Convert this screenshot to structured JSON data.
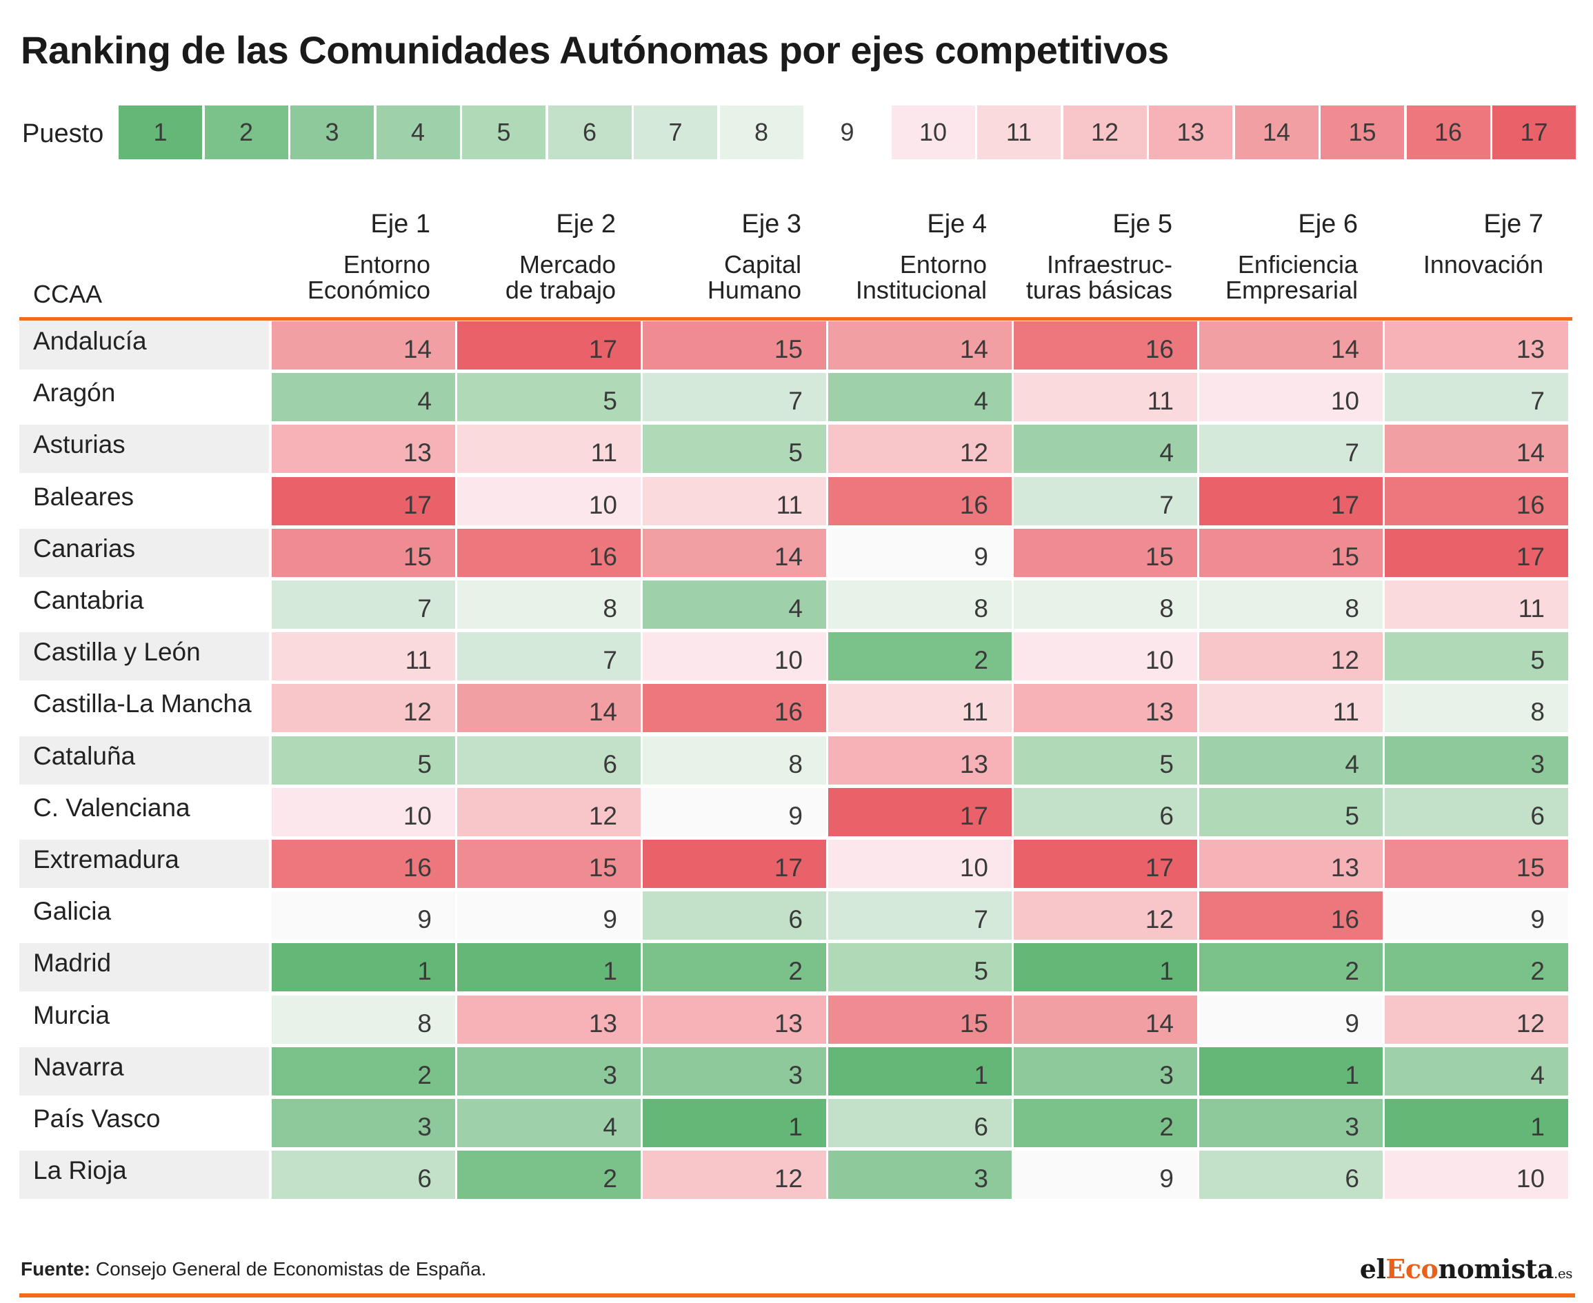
{
  "title": "Ranking de las Comunidades Autónomas por ejes competitivos",
  "legend": {
    "label": "Puesto",
    "items": [
      "1",
      "2",
      "3",
      "4",
      "5",
      "6",
      "7",
      "8",
      "9",
      "10",
      "11",
      "12",
      "13",
      "14",
      "15",
      "16",
      "17"
    ]
  },
  "colors": {
    "rank_scale": {
      "1": "#64b776",
      "2": "#7bc18a",
      "3": "#8ec99b",
      "4": "#9ed1a9",
      "5": "#b0d9b8",
      "6": "#c3e1c9",
      "7": "#d5e9da",
      "8": "#e7f2e9",
      "9": "#fafafa",
      "10": "#fce8ec",
      "11": "#fbdadd",
      "12": "#f8c5c9",
      "13": "#f6b2b7",
      "14": "#f29fa4",
      "15": "#ef8c91",
      "16": "#ec777c",
      "17": "#e9626a"
    },
    "accent": "#f26a1b",
    "row_name_shade": "#efefef"
  },
  "header": {
    "ccaa": "CCAA"
  },
  "columns": [
    {
      "eje": "Eje 1",
      "desc": "Entorno\nEconómico"
    },
    {
      "eje": "Eje 2",
      "desc": "Mercado\nde trabajo"
    },
    {
      "eje": "Eje 3",
      "desc": "Capital\nHumano"
    },
    {
      "eje": "Eje 4",
      "desc": "Entorno\nInstitucional"
    },
    {
      "eje": "Eje 5",
      "desc": "Infraestruc-\nturas básicas"
    },
    {
      "eje": "Eje 6",
      "desc": "Enficiencia\nEmpresarial"
    },
    {
      "eje": "Eje 7",
      "desc": "Innovación"
    }
  ],
  "chart_data": {
    "type": "table",
    "title": "Ranking de las Comunidades Autónomas por ejes competitivos",
    "row_header": "CCAA",
    "columns": [
      "Eje 1",
      "Eje 2",
      "Eje 3",
      "Eje 4",
      "Eje 5",
      "Eje 6",
      "Eje 7"
    ],
    "rows": [
      {
        "name": "Andalucía",
        "values": [
          "14",
          "17",
          "15",
          "14",
          "16",
          "14",
          "13"
        ]
      },
      {
        "name": "Aragón",
        "values": [
          "4",
          "5",
          "7",
          "4",
          "11",
          "10",
          "7"
        ]
      },
      {
        "name": "Asturias",
        "values": [
          "13",
          "11",
          "5",
          "12",
          "4",
          "7",
          "14"
        ]
      },
      {
        "name": "Baleares",
        "values": [
          "17",
          "10",
          "11",
          "16",
          "7",
          "17",
          "16"
        ]
      },
      {
        "name": "Canarias",
        "values": [
          "15",
          "16",
          "14",
          "9",
          "15",
          "15",
          "17"
        ]
      },
      {
        "name": "Cantabria",
        "values": [
          "7",
          "8",
          "4",
          "8",
          "8",
          "8",
          "11"
        ]
      },
      {
        "name": "Castilla y León",
        "values": [
          "11",
          "7",
          "10",
          "2",
          "10",
          "12",
          "5"
        ]
      },
      {
        "name": "Castilla-La Mancha",
        "values": [
          "12",
          "14",
          "16",
          "11",
          "13",
          "11",
          "8"
        ]
      },
      {
        "name": "Cataluña",
        "values": [
          "5",
          "6",
          "8",
          "13",
          "5",
          "4",
          "3"
        ]
      },
      {
        "name": "C. Valenciana",
        "values": [
          "10",
          "12",
          "9",
          "17",
          "6",
          "5",
          "6"
        ]
      },
      {
        "name": "Extremadura",
        "values": [
          "16",
          "15",
          "17",
          "10",
          "17",
          "13",
          "15"
        ]
      },
      {
        "name": "Galicia",
        "values": [
          "9",
          "9",
          "6",
          "7",
          "12",
          "16",
          "9"
        ]
      },
      {
        "name": "Madrid",
        "values": [
          "1",
          "1",
          "2",
          "5",
          "1",
          "2",
          "2"
        ]
      },
      {
        "name": "Murcia",
        "values": [
          "8",
          "13",
          "13",
          "15",
          "14",
          "9",
          "12"
        ]
      },
      {
        "name": "Navarra",
        "values": [
          "2",
          "3",
          "3",
          "1",
          "3",
          "1",
          "4"
        ]
      },
      {
        "name": "País Vasco",
        "values": [
          "3",
          "4",
          "1",
          "6",
          "2",
          "3",
          "1"
        ]
      },
      {
        "name": "La Rioja",
        "values": [
          "6",
          "2",
          "12",
          "3",
          "9",
          "6",
          "10"
        ]
      }
    ]
  },
  "footer": {
    "source_label": "Fuente:",
    "source_text": " Consejo General de Economistas de España.",
    "brand_el": "el",
    "brand_eco": "Eco",
    "brand_rest": "nomista",
    "brand_tld": ".es"
  }
}
